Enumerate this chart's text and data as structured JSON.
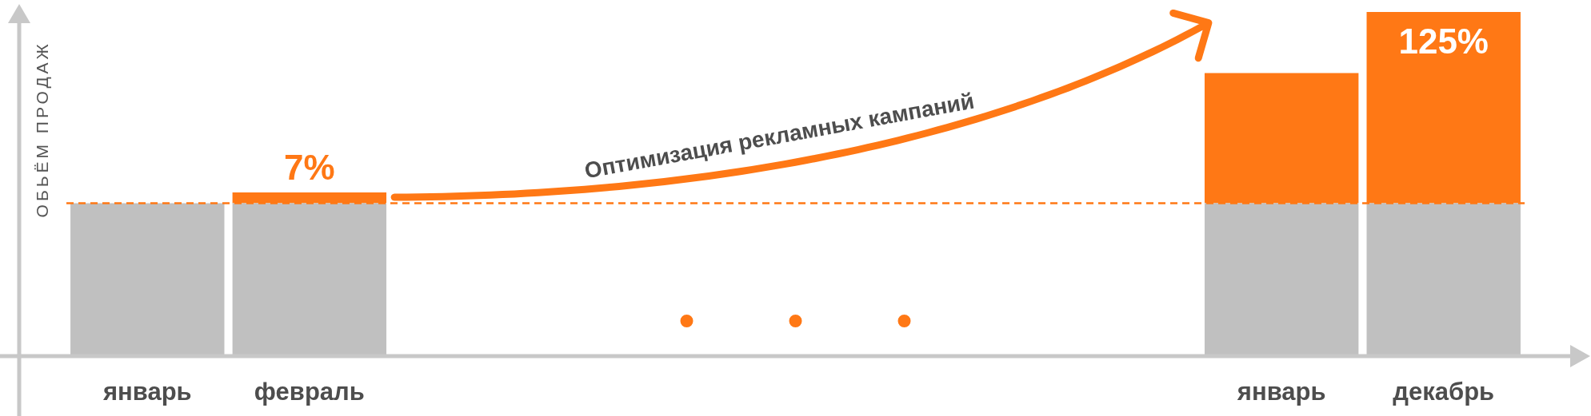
{
  "chart_data": {
    "type": "bar",
    "stacked": true,
    "ylabel": "ОБЬЁМ ПРОДАЖ",
    "tick_labels": "x",
    "categories": [
      "январь",
      "февраль",
      null,
      null,
      null,
      null,
      null,
      "январь",
      "декабрь"
    ],
    "series": [
      {
        "color": "#c0c0c0",
        "values": [
          100,
          100,
          null,
          null,
          null,
          null,
          null,
          100,
          100
        ]
      },
      {
        "color": "#ff7815",
        "values": [
          null,
          7,
          null,
          null,
          null,
          null,
          null,
          85,
          125
        ],
        "value_labels": [
          null,
          "7%",
          null,
          null,
          null,
          null,
          null,
          null,
          "125%"
        ]
      }
    ],
    "ref_lines": [
      {
        "axis": "y",
        "value": 100,
        "color": "#ff7815",
        "line_style": "dashed"
      }
    ],
    "annotations": [
      "Оптимизация рекламных кампаний"
    ]
  }
}
